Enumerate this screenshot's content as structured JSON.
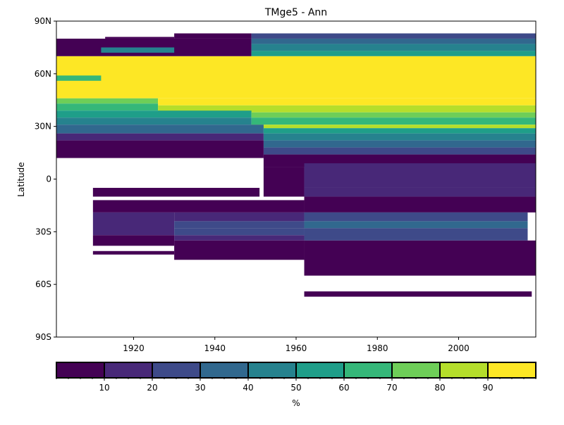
{
  "chart_data": {
    "type": "heatmap",
    "title": "TMge5 - Ann",
    "ylabel": "Latitude",
    "xlabel": "",
    "xlim": [
      1901,
      2019
    ],
    "ylim": [
      -90,
      90
    ],
    "x_ticks": [
      {
        "value": 1920,
        "label": "1920"
      },
      {
        "value": 1940,
        "label": "1940"
      },
      {
        "value": 1960,
        "label": "1960"
      },
      {
        "value": 1980,
        "label": "1980"
      },
      {
        "value": 2000,
        "label": "2000"
      }
    ],
    "y_ticks": [
      {
        "value": 90,
        "label": "90N"
      },
      {
        "value": 60,
        "label": "60N"
      },
      {
        "value": 30,
        "label": "30N"
      },
      {
        "value": 0,
        "label": "0"
      },
      {
        "value": -30,
        "label": "30S"
      },
      {
        "value": -60,
        "label": "60S"
      },
      {
        "value": -90,
        "label": "90S"
      }
    ],
    "colorbar": {
      "label": "%",
      "range": [
        0,
        100
      ],
      "ticks": [
        10,
        20,
        30,
        40,
        50,
        60,
        70,
        80,
        90
      ],
      "tick_labels": [
        "10",
        "20",
        "30",
        "40",
        "50",
        "60",
        "70",
        "80",
        "90"
      ],
      "colors": [
        "#440154",
        "#482878",
        "#3e4a89",
        "#31688e",
        "#26828e",
        "#1f9e89",
        "#35b779",
        "#6ece58",
        "#b5de2b",
        "#fde725"
      ]
    },
    "cells": [
      {
        "x0": 1901,
        "x1": 1949,
        "y0": 70,
        "y1": 80,
        "value": 5
      },
      {
        "x0": 1930,
        "x1": 1949,
        "y0": 80,
        "y1": 83,
        "value": 5
      },
      {
        "x0": 1913,
        "x1": 1930,
        "y0": 80,
        "y1": 81,
        "value": 5
      },
      {
        "x0": 1912,
        "x1": 1930,
        "y0": 72,
        "y1": 75,
        "value": 45
      },
      {
        "x0": 1949,
        "x1": 2019,
        "y0": 80,
        "y1": 83,
        "value": 25
      },
      {
        "x0": 1949,
        "x1": 2019,
        "y0": 77,
        "y1": 80,
        "value": 35
      },
      {
        "x0": 1949,
        "x1": 2019,
        "y0": 73,
        "y1": 77,
        "value": 45
      },
      {
        "x0": 1949,
        "x1": 2019,
        "y0": 70,
        "y1": 73,
        "value": 55
      },
      {
        "x0": 1901,
        "x1": 2019,
        "y0": 46,
        "y1": 70,
        "value": 95
      },
      {
        "x0": 1901,
        "x1": 1912,
        "y0": 56,
        "y1": 59,
        "value": 65
      },
      {
        "x0": 1901,
        "x1": 1926,
        "y0": 43,
        "y1": 46,
        "value": 75
      },
      {
        "x0": 1926,
        "x1": 2019,
        "y0": 42,
        "y1": 46,
        "value": 95
      },
      {
        "x0": 1901,
        "x1": 1926,
        "y0": 39,
        "y1": 43,
        "value": 65
      },
      {
        "x0": 1926,
        "x1": 2019,
        "y0": 38,
        "y1": 42,
        "value": 85
      },
      {
        "x0": 1901,
        "x1": 1949,
        "y0": 35,
        "y1": 39,
        "value": 55
      },
      {
        "x0": 1949,
        "x1": 2019,
        "y0": 35,
        "y1": 38,
        "value": 75
      },
      {
        "x0": 1901,
        "x1": 1949,
        "y0": 31,
        "y1": 35,
        "value": 45
      },
      {
        "x0": 1949,
        "x1": 2019,
        "y0": 31,
        "y1": 35,
        "value": 65
      },
      {
        "x0": 1949,
        "x1": 2019,
        "y0": 29,
        "y1": 31,
        "value": 85
      },
      {
        "x0": 1901,
        "x1": 1952,
        "y0": 26,
        "y1": 31,
        "value": 35
      },
      {
        "x0": 1952,
        "x1": 2019,
        "y0": 26,
        "y1": 29,
        "value": 55
      },
      {
        "x0": 1901,
        "x1": 1952,
        "y0": 22,
        "y1": 26,
        "value": 15
      },
      {
        "x0": 1952,
        "x1": 2019,
        "y0": 22,
        "y1": 26,
        "value": 45
      },
      {
        "x0": 1952,
        "x1": 2019,
        "y0": 18,
        "y1": 22,
        "value": 35
      },
      {
        "x0": 1952,
        "x1": 2019,
        "y0": 14,
        "y1": 18,
        "value": 25
      },
      {
        "x0": 1901,
        "x1": 1952,
        "y0": 12,
        "y1": 22,
        "value": 5
      },
      {
        "x0": 1952,
        "x1": 2019,
        "y0": 7,
        "y1": 14,
        "value": 5
      },
      {
        "x0": 1952,
        "x1": 1962,
        "y0": -10,
        "y1": 7,
        "value": 5
      },
      {
        "x0": 1962,
        "x1": 2019,
        "y0": -5,
        "y1": 9,
        "value": 15
      },
      {
        "x0": 1962,
        "x1": 2019,
        "y0": -10,
        "y1": -5,
        "value": 15
      },
      {
        "x0": 1910,
        "x1": 1951,
        "y0": -10,
        "y1": -5,
        "value": 5
      },
      {
        "x0": 1910,
        "x1": 1962,
        "y0": -19,
        "y1": -12,
        "value": 5
      },
      {
        "x0": 1962,
        "x1": 2019,
        "y0": -19,
        "y1": -10,
        "value": 5
      },
      {
        "x0": 1910,
        "x1": 1930,
        "y0": -32,
        "y1": -19,
        "value": 15
      },
      {
        "x0": 1930,
        "x1": 1962,
        "y0": -24,
        "y1": -19,
        "value": 15
      },
      {
        "x0": 1930,
        "x1": 1962,
        "y0": -28,
        "y1": -24,
        "value": 25
      },
      {
        "x0": 1962,
        "x1": 2017,
        "y0": -24,
        "y1": -19,
        "value": 25
      },
      {
        "x0": 1962,
        "x1": 2017,
        "y0": -28,
        "y1": -24,
        "value": 35
      },
      {
        "x0": 1962,
        "x1": 2017,
        "y0": -35,
        "y1": -28,
        "value": 25
      },
      {
        "x0": 1930,
        "x1": 1962,
        "y0": -32,
        "y1": -28,
        "value": 25
      },
      {
        "x0": 1930,
        "x1": 1962,
        "y0": -35,
        "y1": -32,
        "value": 15
      },
      {
        "x0": 1910,
        "x1": 1930,
        "y0": -38,
        "y1": -32,
        "value": 5
      },
      {
        "x0": 1930,
        "x1": 1962,
        "y0": -46,
        "y1": -35,
        "value": 5
      },
      {
        "x0": 1962,
        "x1": 2019,
        "y0": -55,
        "y1": -35,
        "value": 5
      },
      {
        "x0": 1910,
        "x1": 1930,
        "y0": -43,
        "y1": -41,
        "value": 5
      },
      {
        "x0": 1962,
        "x1": 2018,
        "y0": -67,
        "y1": -64,
        "value": 5
      }
    ]
  }
}
